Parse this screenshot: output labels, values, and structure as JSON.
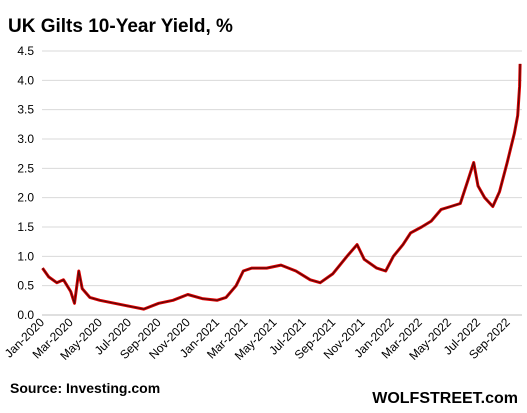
{
  "chart_data": {
    "type": "line",
    "title": "UK Gilts 10-Year Yield, %",
    "xlabel": "",
    "ylabel": "",
    "ylim": [
      0,
      4.5
    ],
    "yticks": [
      "0.0",
      "0.5",
      "1.0",
      "1.5",
      "2.0",
      "2.5",
      "3.0",
      "3.5",
      "4.0",
      "4.5"
    ],
    "xticks": [
      "Jan-2020",
      "Mar-2020",
      "May-2020",
      "Jul-2020",
      "Sep-2020",
      "Nov-2020",
      "Jan-2021",
      "Mar-2021",
      "May-2021",
      "Jul-2021",
      "Sep-2021",
      "Nov-2021",
      "Jan-2022",
      "Mar-2022",
      "May-2022",
      "Jul-2022",
      "Sep-2022"
    ],
    "grid": "horizontal",
    "line_color": "#e00000",
    "series": [
      {
        "x": [
          "2020-01-02",
          "2020-01-15",
          "2020-02-01",
          "2020-02-15",
          "2020-03-01",
          "2020-03-09",
          "2020-03-18",
          "2020-03-25",
          "2020-04-10",
          "2020-05-01",
          "2020-06-01",
          "2020-07-01",
          "2020-08-01",
          "2020-09-01",
          "2020-10-01",
          "2020-11-01",
          "2020-12-01",
          "2021-01-01",
          "2021-01-20",
          "2021-02-10",
          "2021-02-25",
          "2021-03-15",
          "2021-04-15",
          "2021-05-15",
          "2021-06-15",
          "2021-07-15",
          "2021-08-05",
          "2021-08-31",
          "2021-09-30",
          "2021-10-21",
          "2021-11-05",
          "2021-12-01",
          "2021-12-20",
          "2022-01-05",
          "2022-01-25",
          "2022-02-10",
          "2022-03-05",
          "2022-03-25",
          "2022-04-15",
          "2022-05-05",
          "2022-05-25",
          "2022-06-10",
          "2022-06-22",
          "2022-07-01",
          "2022-07-15",
          "2022-08-01",
          "2022-08-15",
          "2022-08-31",
          "2022-09-15",
          "2022-09-22",
          "2022-09-26",
          "2022-09-27"
        ],
        "y": [
          0.8,
          0.65,
          0.55,
          0.6,
          0.4,
          0.2,
          0.75,
          0.45,
          0.3,
          0.25,
          0.2,
          0.15,
          0.1,
          0.2,
          0.25,
          0.35,
          0.28,
          0.25,
          0.3,
          0.5,
          0.75,
          0.8,
          0.8,
          0.85,
          0.75,
          0.6,
          0.55,
          0.7,
          1.0,
          1.2,
          0.95,
          0.8,
          0.75,
          1.0,
          1.2,
          1.4,
          1.5,
          1.6,
          1.8,
          1.85,
          1.9,
          2.3,
          2.6,
          2.2,
          2.0,
          1.85,
          2.1,
          2.6,
          3.1,
          3.4,
          3.9,
          4.28
        ]
      }
    ]
  },
  "footer": {
    "source": "Source: Investing.com",
    "brand": "WOLFSTREET.com"
  }
}
